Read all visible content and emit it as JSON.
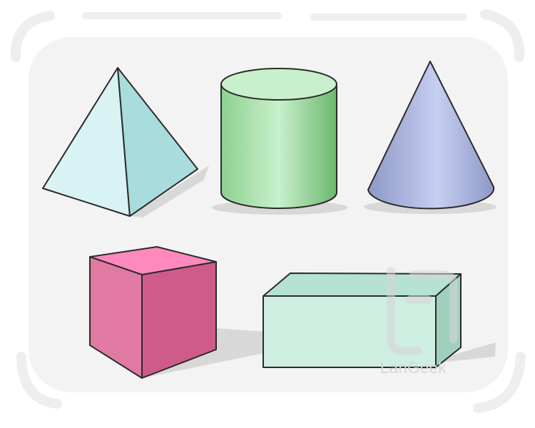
{
  "watermark": {
    "text": "LanGeek"
  },
  "shapes": [
    {
      "name": "pyramid",
      "colors": [
        "#d9f3f5",
        "#a9dcdc"
      ]
    },
    {
      "name": "cylinder",
      "colors": [
        "#c8f0cc",
        "#8fd08f",
        "#6bb86c"
      ]
    },
    {
      "name": "cone",
      "colors": [
        "#aab4e0",
        "#c6cff0",
        "#8d98c8"
      ]
    },
    {
      "name": "cube",
      "colors": [
        "#ff89bd",
        "#e07aa3",
        "#cf5b8a"
      ]
    },
    {
      "name": "cuboid",
      "colors": [
        "#b5e2d2",
        "#cfeee2",
        "#9ed0bd"
      ]
    }
  ]
}
